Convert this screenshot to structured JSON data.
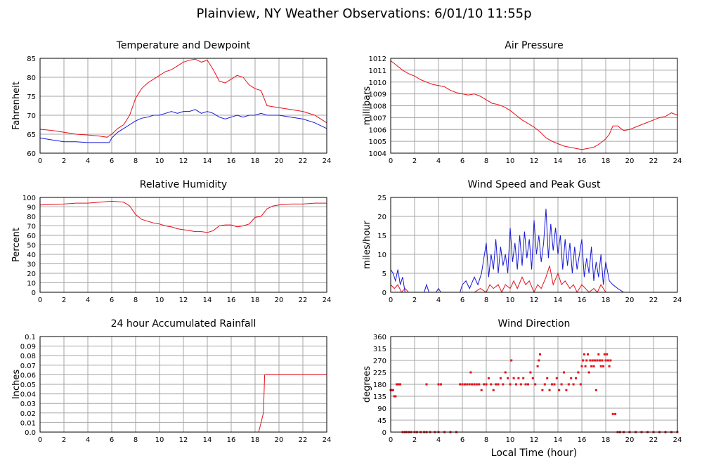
{
  "title": "Plainview, NY Weather Observations: 6/01/10 11:55p",
  "colors": {
    "red": "#e8101a",
    "blue": "#1818d8",
    "grid": "#a6a6a6",
    "frame": "#000000"
  },
  "chart_data": [
    {
      "type": "line",
      "title": "Temperature and Dewpoint",
      "ylabel": "Fahrenheit",
      "xlabel": "",
      "xlim": [
        0,
        24
      ],
      "ylim": [
        60,
        85
      ],
      "xticks": [
        0,
        2,
        4,
        6,
        8,
        10,
        12,
        14,
        16,
        18,
        20,
        22,
        24
      ],
      "yticks": [
        60,
        65,
        70,
        75,
        80,
        85
      ],
      "yticklabels": [
        "60",
        "65",
        "70",
        "75",
        "80",
        "85"
      ],
      "grid": true,
      "series": [
        {
          "color": "red",
          "x": [
            0,
            1,
            2,
            3,
            4,
            5,
            5.6,
            6,
            6.5,
            7,
            7.5,
            8,
            8.5,
            9,
            9.5,
            10,
            10.5,
            11,
            11.5,
            12,
            12.5,
            13,
            13.5,
            14,
            14.5,
            15,
            15.5,
            16,
            16.5,
            17,
            17.5,
            18,
            18.5,
            19,
            20,
            21,
            22,
            23,
            24
          ],
          "y": [
            66.3,
            66,
            65.5,
            65,
            64.8,
            64.5,
            64.2,
            65,
            66.5,
            67.5,
            70,
            74.5,
            77,
            78.5,
            79.5,
            80.5,
            81.5,
            82,
            83,
            84,
            84.5,
            84.8,
            84,
            84.5,
            82,
            79,
            78.5,
            79.5,
            80.5,
            80,
            78,
            77,
            76.5,
            72.5,
            72,
            71.5,
            71,
            70,
            68
          ]
        },
        {
          "color": "blue",
          "x": [
            0,
            1,
            2,
            3,
            4,
            5,
            5.8,
            6,
            6.5,
            7,
            7.5,
            8,
            8.5,
            9,
            9.5,
            10,
            10.5,
            11,
            11.5,
            12,
            12.5,
            13,
            13.5,
            14,
            14.5,
            15,
            15.5,
            16,
            16.5,
            17,
            17.5,
            18,
            18.5,
            19,
            20,
            21,
            22,
            23,
            24
          ],
          "y": [
            64,
            63.5,
            63,
            63,
            62.8,
            62.8,
            62.8,
            64,
            65.5,
            66.5,
            67.5,
            68.5,
            69.2,
            69.5,
            70,
            70,
            70.5,
            71,
            70.5,
            71,
            71,
            71.5,
            70.5,
            71,
            70.5,
            69.5,
            69,
            69.5,
            70,
            69.5,
            70,
            70,
            70.5,
            70,
            70,
            69.5,
            69,
            68,
            66.5
          ]
        }
      ]
    },
    {
      "type": "line",
      "title": "Air Pressure",
      "ylabel": "millibars",
      "xlabel": "",
      "xlim": [
        0,
        24
      ],
      "ylim": [
        1004,
        1012
      ],
      "xticks": [
        0,
        2,
        4,
        6,
        8,
        10,
        12,
        14,
        16,
        18,
        20,
        22,
        24
      ],
      "yticks": [
        1004,
        1005,
        1006,
        1007,
        1008,
        1009,
        1010,
        1011,
        1012
      ],
      "yticklabels": [
        "1004",
        "1005",
        "1006",
        "1007",
        "1008",
        "1009",
        "1010",
        "1011",
        "1012"
      ],
      "grid": true,
      "series": [
        {
          "color": "red",
          "x": [
            0,
            0.5,
            1,
            1.5,
            2,
            2.5,
            3,
            3.5,
            4,
            4.5,
            5,
            5.5,
            6,
            6.5,
            7,
            7.5,
            8,
            8.5,
            9,
            9.5,
            10,
            10.5,
            11,
            11.5,
            12,
            12.5,
            13,
            13.5,
            14,
            14.5,
            15,
            15.5,
            16,
            16.5,
            17,
            17.5,
            18,
            18.3,
            18.6,
            19,
            19.5,
            20,
            20.5,
            21,
            21.5,
            22,
            22.5,
            23,
            23.5,
            24
          ],
          "y": [
            1011.8,
            1011.4,
            1011,
            1010.7,
            1010.5,
            1010.2,
            1010,
            1009.8,
            1009.7,
            1009.6,
            1009.3,
            1009.1,
            1009,
            1008.9,
            1009,
            1008.8,
            1008.5,
            1008.2,
            1008.1,
            1007.9,
            1007.6,
            1007.2,
            1006.8,
            1006.5,
            1006.2,
            1005.8,
            1005.3,
            1005,
            1004.8,
            1004.6,
            1004.5,
            1004.4,
            1004.3,
            1004.4,
            1004.5,
            1004.8,
            1005.2,
            1005.6,
            1006.3,
            1006.3,
            1005.9,
            1006,
            1006.2,
            1006.4,
            1006.6,
            1006.8,
            1007,
            1007.1,
            1007.4,
            1007.2
          ]
        }
      ]
    },
    {
      "type": "line",
      "title": "Relative Humidity",
      "ylabel": "Percent",
      "xlabel": "",
      "xlim": [
        0,
        24
      ],
      "ylim": [
        0,
        100
      ],
      "xticks": [
        0,
        2,
        4,
        6,
        8,
        10,
        12,
        14,
        16,
        18,
        20,
        22,
        24
      ],
      "yticks": [
        0,
        10,
        20,
        30,
        40,
        50,
        60,
        70,
        80,
        90,
        100
      ],
      "yticklabels": [
        "0",
        "10",
        "20",
        "30",
        "40",
        "50",
        "60",
        "70",
        "80",
        "90",
        "100"
      ],
      "grid": true,
      "series": [
        {
          "color": "red",
          "x": [
            0,
            1,
            2,
            3,
            4,
            5,
            6,
            7,
            7.5,
            8,
            8.5,
            9,
            9.5,
            10,
            10.5,
            11,
            11.5,
            12,
            12.5,
            13,
            13.5,
            14,
            14.5,
            15,
            15.5,
            16,
            16.5,
            17,
            17.5,
            18,
            18.5,
            19,
            19.5,
            20,
            21,
            22,
            23,
            24
          ],
          "y": [
            92,
            92.5,
            93,
            94,
            94,
            95,
            96,
            95,
            91,
            82,
            77,
            75,
            73,
            72,
            70,
            69,
            67,
            66,
            65,
            64,
            64,
            63,
            65,
            70,
            71,
            71,
            69,
            70,
            72,
            79,
            80,
            88,
            91,
            92,
            93,
            93,
            94,
            94
          ]
        }
      ]
    },
    {
      "type": "line",
      "title": "Wind Speed and Peak Gust",
      "ylabel": "miles/hour",
      "xlabel": "",
      "xlim": [
        0,
        24
      ],
      "ylim": [
        0,
        25
      ],
      "xticks": [
        0,
        2,
        4,
        6,
        8,
        10,
        12,
        14,
        16,
        18,
        20,
        22,
        24
      ],
      "yticks": [
        0,
        5,
        10,
        15,
        20,
        25
      ],
      "yticklabels": [
        "0",
        "5",
        "10",
        "15",
        "20",
        "25"
      ],
      "grid": true,
      "series": [
        {
          "color": "blue",
          "x": [
            0,
            0.2,
            0.4,
            0.6,
            0.8,
            1,
            1.2,
            1.5,
            2,
            2.8,
            3,
            3.2,
            3.5,
            3.8,
            4,
            4.2,
            5,
            5.8,
            6,
            6.3,
            6.6,
            7,
            7.3,
            7.6,
            8,
            8.2,
            8.4,
            8.6,
            8.8,
            9,
            9.2,
            9.4,
            9.6,
            9.8,
            10,
            10.2,
            10.4,
            10.6,
            10.8,
            11,
            11.2,
            11.4,
            11.6,
            11.8,
            12,
            12.2,
            12.4,
            12.6,
            12.8,
            13,
            13.2,
            13.4,
            13.6,
            13.8,
            14,
            14.2,
            14.4,
            14.6,
            14.8,
            15,
            15.2,
            15.4,
            15.6,
            15.8,
            16,
            16.2,
            16.4,
            16.6,
            16.8,
            17,
            17.2,
            17.4,
            17.6,
            17.8,
            18,
            18.3,
            18.6,
            19,
            19.5,
            20,
            24
          ],
          "y": [
            6,
            5,
            3,
            6,
            2,
            4,
            0,
            0,
            0,
            0,
            2,
            0,
            0,
            0,
            1,
            0,
            0,
            0,
            2,
            3,
            1,
            4,
            2,
            5,
            13,
            4,
            10,
            6,
            14,
            5,
            12,
            7,
            10,
            5,
            17,
            8,
            13,
            6,
            15,
            7,
            16,
            9,
            14,
            6,
            19,
            10,
            15,
            8,
            13,
            22,
            9,
            18,
            11,
            17,
            10,
            15,
            6,
            14,
            7,
            13,
            5,
            12,
            6,
            10,
            14,
            4,
            9,
            5,
            12,
            3,
            8,
            4,
            10,
            2,
            8,
            3,
            2,
            1,
            0,
            0,
            0
          ]
        },
        {
          "color": "red",
          "x": [
            0,
            0.3,
            0.6,
            0.9,
            1.2,
            1.5,
            2,
            6,
            7,
            7.5,
            8,
            8.3,
            8.6,
            9,
            9.3,
            9.6,
            10,
            10.3,
            10.6,
            11,
            11.3,
            11.6,
            12,
            12.3,
            12.6,
            13,
            13.3,
            13.6,
            14,
            14.3,
            14.6,
            15,
            15.3,
            15.6,
            16,
            16.3,
            16.6,
            17,
            17.3,
            17.6,
            18,
            18.5,
            19,
            24
          ],
          "y": [
            2,
            1,
            2,
            0,
            1,
            0,
            0,
            0,
            0,
            1,
            0,
            2,
            1,
            2,
            0,
            2,
            1,
            3,
            1,
            4,
            2,
            3,
            0,
            2,
            1,
            4,
            7,
            2,
            5,
            2,
            3,
            1,
            2,
            0,
            2,
            1,
            0,
            1,
            0,
            2,
            0,
            0,
            0,
            0
          ]
        }
      ]
    },
    {
      "type": "line",
      "title": "24 hour Accumulated Rainfall",
      "ylabel": "Inches",
      "xlabel": "",
      "xlim": [
        0,
        24
      ],
      "ylim": [
        0,
        0.1
      ],
      "xticks": [
        0,
        2,
        4,
        6,
        8,
        10,
        12,
        14,
        16,
        18,
        20,
        22,
        24
      ],
      "yticks": [
        0,
        0.01,
        0.02,
        0.03,
        0.04,
        0.05,
        0.06,
        0.07,
        0.08,
        0.09,
        0.1
      ],
      "yticklabels": [
        "0.0",
        "0.01",
        "0.02",
        "0.03",
        "0.04",
        "0.05",
        "0.06",
        "0.07",
        "0.08",
        "0.09",
        "0.1"
      ],
      "grid": true,
      "series": [
        {
          "color": "red",
          "x": [
            0,
            18.3,
            18.5,
            18.7,
            18.8,
            24
          ],
          "y": [
            0,
            0,
            0.01,
            0.02,
            0.06,
            0.06
          ]
        }
      ]
    },
    {
      "type": "scatter",
      "title": "Wind Direction",
      "ylabel": "degrees",
      "xlabel": "Local Time (hour)",
      "xlim": [
        0,
        24
      ],
      "ylim": [
        0,
        360
      ],
      "xticks": [
        0,
        2,
        4,
        6,
        8,
        10,
        12,
        14,
        16,
        18,
        20,
        22,
        24
      ],
      "yticks": [
        0,
        45,
        90,
        135,
        180,
        225,
        270,
        315,
        360
      ],
      "yticklabels": [
        "0",
        "45",
        "90",
        "135",
        "180",
        "225",
        "270",
        "315",
        "360"
      ],
      "grid": true,
      "series": [
        {
          "color": "red",
          "x": [
            0,
            0.1,
            0.2,
            0.3,
            0.4,
            0.5,
            0.6,
            0.7,
            0.8,
            1.0,
            1.2,
            1.3,
            1.5,
            1.7,
            2.0,
            2.2,
            2.5,
            2.8,
            3.0,
            3.3,
            3.7,
            4.0,
            4.5,
            5.0,
            5.5,
            3.0,
            4.0,
            4.2,
            5.8,
            6.0,
            6.2,
            6.4,
            6.6,
            6.7,
            6.8,
            7.0,
            7.2,
            7.4,
            7.6,
            7.8,
            8.0,
            8.2,
            8.4,
            8.6,
            8.8,
            9.0,
            9.2,
            9.4,
            9.6,
            9.8,
            10.0,
            10.1,
            10.3,
            10.5,
            10.7,
            10.9,
            11.1,
            11.3,
            11.5,
            11.7,
            11.9,
            12.1,
            12.3,
            12.4,
            12.5,
            12.7,
            12.9,
            13.1,
            13.3,
            13.5,
            13.7,
            13.9,
            14.1,
            14.3,
            14.5,
            14.7,
            14.9,
            15.1,
            15.3,
            15.5,
            15.7,
            15.9,
            16.0,
            16.1,
            16.2,
            16.3,
            16.4,
            16.5,
            16.6,
            16.7,
            16.8,
            16.9,
            17.0,
            17.1,
            17.2,
            17.3,
            17.4,
            17.5,
            17.6,
            17.7,
            17.8,
            17.9,
            18.0,
            18.1,
            18.2,
            18.3,
            18.4,
            18.6,
            18.8,
            19.0,
            19.2,
            19.5,
            20,
            20.5,
            21,
            21.5,
            22,
            22.5,
            23,
            23.5,
            24
          ],
          "y": [
            158,
            158,
            158,
            135,
            135,
            180,
            180,
            180,
            180,
            0,
            0,
            0,
            0,
            0,
            0,
            0,
            0,
            0,
            0,
            0,
            0,
            0,
            0,
            0,
            0,
            180,
            180,
            180,
            180,
            180,
            180,
            180,
            180,
            225,
            180,
            180,
            180,
            180,
            158,
            180,
            180,
            203,
            180,
            158,
            180,
            180,
            203,
            180,
            225,
            203,
            180,
            270,
            203,
            180,
            203,
            180,
            203,
            180,
            180,
            225,
            203,
            180,
            248,
            270,
            293,
            158,
            180,
            203,
            158,
            180,
            180,
            203,
            158,
            180,
            225,
            158,
            180,
            203,
            180,
            203,
            225,
            180,
            248,
            270,
            293,
            248,
            270,
            293,
            225,
            270,
            248,
            270,
            248,
            270,
            158,
            270,
            293,
            270,
            248,
            270,
            248,
            293,
            270,
            293,
            270,
            248,
            270,
            68,
            68,
            0,
            0,
            0,
            0,
            0,
            0,
            0,
            0,
            0,
            0,
            0,
            0
          ]
        }
      ]
    }
  ]
}
